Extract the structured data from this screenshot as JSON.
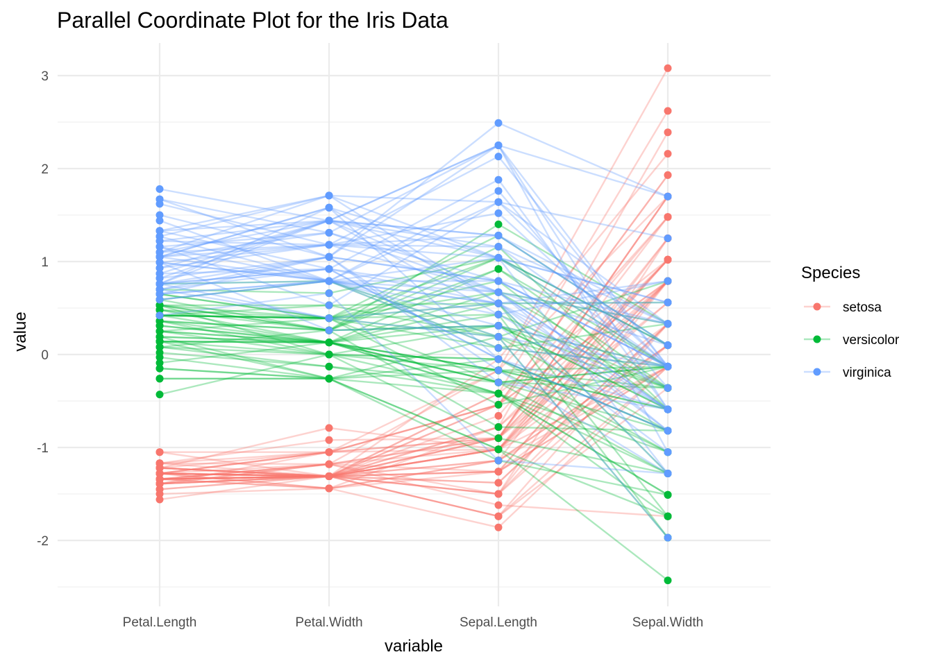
{
  "chart_data": {
    "type": "line",
    "title": "Parallel Coordinate Plot for the Iris Data",
    "xlabel": "variable",
    "ylabel": "value",
    "categories": [
      "Petal.Length",
      "Petal.Width",
      "Sepal.Length",
      "Sepal.Width"
    ],
    "ylim": [
      -2.5,
      3.2
    ],
    "yticks": [
      3,
      2,
      1,
      0,
      -1,
      -2
    ],
    "ytick_labels": [
      "3",
      "2",
      "1",
      "0",
      "-1",
      "-2"
    ],
    "grid": true,
    "legend": {
      "title": "Species",
      "position": "right",
      "entries": [
        "setosa",
        "versicolor",
        "virginica"
      ]
    },
    "series": [
      {
        "name": "setosa",
        "color": "#F8766D",
        "lines": [
          [
            -1.34,
            -1.31,
            -0.9,
            1.02
          ],
          [
            -1.34,
            -1.31,
            -1.14,
            -0.13
          ],
          [
            -1.39,
            -1.31,
            -1.38,
            0.33
          ],
          [
            -1.28,
            -1.31,
            -1.5,
            0.1
          ],
          [
            -1.34,
            -1.31,
            -1.02,
            1.25
          ],
          [
            -1.17,
            -1.05,
            -0.54,
            1.93
          ],
          [
            -1.34,
            -1.18,
            -1.5,
            0.79
          ],
          [
            -1.28,
            -1.31,
            -1.02,
            0.79
          ],
          [
            -1.34,
            -1.31,
            -1.74,
            -0.36
          ],
          [
            -1.28,
            -1.44,
            -1.14,
            0.1
          ],
          [
            -1.28,
            -1.31,
            -0.54,
            1.48
          ],
          [
            -1.22,
            -1.31,
            -1.26,
            0.79
          ],
          [
            -1.34,
            -1.44,
            -1.26,
            -0.13
          ],
          [
            -1.5,
            -1.44,
            -1.86,
            -0.13
          ],
          [
            -1.45,
            -1.31,
            -0.05,
            2.16
          ],
          [
            -1.28,
            -1.05,
            -0.17,
            3.08
          ],
          [
            -1.39,
            -1.05,
            -0.54,
            1.93
          ],
          [
            -1.34,
            -1.18,
            -0.9,
            1.02
          ],
          [
            -1.17,
            -1.18,
            -0.17,
            1.7
          ],
          [
            -1.28,
            -1.18,
            -0.9,
            1.7
          ],
          [
            -1.17,
            -1.31,
            -0.54,
            0.79
          ],
          [
            -1.28,
            -1.05,
            -0.9,
            1.48
          ],
          [
            -1.56,
            -1.31,
            -1.5,
            1.25
          ],
          [
            -1.17,
            -0.92,
            -0.9,
            0.56
          ],
          [
            -1.05,
            -1.31,
            -1.26,
            0.79
          ],
          [
            -1.22,
            -1.31,
            -1.02,
            -0.13
          ],
          [
            -1.22,
            -1.05,
            -1.02,
            0.79
          ],
          [
            -1.28,
            -1.31,
            -0.78,
            1.02
          ],
          [
            -1.34,
            -1.31,
            -0.78,
            0.79
          ],
          [
            -1.22,
            -1.31,
            -1.38,
            0.33
          ],
          [
            -1.22,
            -1.31,
            -1.26,
            0.1
          ],
          [
            -1.28,
            -1.05,
            -0.54,
            0.79
          ],
          [
            -1.28,
            -1.44,
            -0.78,
            2.39
          ],
          [
            -1.34,
            -1.31,
            -0.42,
            2.62
          ],
          [
            -1.28,
            -1.31,
            -1.14,
            0.1
          ],
          [
            -1.45,
            -1.31,
            -1.02,
            0.33
          ],
          [
            -1.39,
            -1.31,
            -0.42,
            1.02
          ],
          [
            -1.34,
            -1.44,
            -1.14,
            1.25
          ],
          [
            -1.39,
            -1.31,
            -1.74,
            -0.13
          ],
          [
            -1.28,
            -1.31,
            -0.9,
            0.79
          ],
          [
            -1.39,
            -1.18,
            -1.02,
            1.02
          ],
          [
            -1.39,
            -1.18,
            -1.62,
            -1.74
          ],
          [
            -1.39,
            -1.31,
            -1.74,
            0.33
          ],
          [
            -1.22,
            -0.79,
            -1.02,
            1.02
          ],
          [
            -1.05,
            -1.05,
            -0.9,
            1.7
          ],
          [
            -1.34,
            -1.18,
            -1.26,
            -0.13
          ],
          [
            -1.22,
            -1.31,
            -0.9,
            1.7
          ],
          [
            -1.34,
            -1.31,
            -1.5,
            0.33
          ],
          [
            -1.28,
            -1.31,
            -0.66,
            1.48
          ],
          [
            -1.34,
            -1.31,
            -1.02,
            0.56
          ]
        ]
      },
      {
        "name": "versicolor",
        "color": "#00BA38",
        "lines": [
          [
            0.53,
            0.26,
            1.4,
            0.33
          ],
          [
            0.42,
            0.39,
            0.67,
            0.33
          ],
          [
            0.65,
            0.39,
            1.28,
            0.1
          ],
          [
            0.14,
            0.13,
            -0.42,
            -1.74
          ],
          [
            0.48,
            0.39,
            0.79,
            -0.59
          ],
          [
            0.42,
            0.13,
            -0.17,
            -0.59
          ],
          [
            0.53,
            0.53,
            0.55,
            0.56
          ],
          [
            -0.26,
            -0.26,
            -1.14,
            -1.51
          ],
          [
            0.48,
            0.13,
            0.92,
            -0.36
          ],
          [
            0.08,
            0.26,
            -0.78,
            -0.82
          ],
          [
            -0.15,
            -0.26,
            -1.02,
            -2.43
          ],
          [
            0.25,
            0.39,
            0.07,
            -0.13
          ],
          [
            0.14,
            -0.26,
            0.19,
            -1.97
          ],
          [
            0.53,
            0.26,
            0.31,
            -0.36
          ],
          [
            -0.09,
            0.13,
            -0.3,
            -0.36
          ],
          [
            0.36,
            0.26,
            1.04,
            0.1
          ],
          [
            0.42,
            0.39,
            -0.3,
            -0.13
          ],
          [
            0.19,
            -0.26,
            -0.05,
            -0.82
          ],
          [
            0.42,
            0.39,
            0.43,
            -1.97
          ],
          [
            0.08,
            -0.13,
            -0.3,
            -1.28
          ],
          [
            0.59,
            0.79,
            0.07,
            0.33
          ],
          [
            0.14,
            0.13,
            0.31,
            -0.59
          ],
          [
            0.65,
            0.39,
            0.55,
            -1.28
          ],
          [
            0.53,
            0.0,
            0.31,
            -0.59
          ],
          [
            0.31,
            0.13,
            0.67,
            -0.36
          ],
          [
            0.36,
            0.26,
            0.92,
            -0.13
          ],
          [
            0.59,
            0.26,
            1.16,
            -0.59
          ],
          [
            0.7,
            0.66,
            1.04,
            -0.13
          ],
          [
            0.42,
            0.39,
            0.19,
            -0.36
          ],
          [
            -0.15,
            -0.26,
            -0.17,
            -1.05
          ],
          [
            0.02,
            -0.13,
            -0.42,
            -1.51
          ],
          [
            -0.03,
            -0.26,
            -0.42,
            -1.51
          ],
          [
            0.08,
            0.0,
            -0.05,
            -0.82
          ],
          [
            0.76,
            0.79,
            0.19,
            -0.82
          ],
          [
            0.42,
            0.39,
            -0.54,
            -0.13
          ],
          [
            0.42,
            0.53,
            0.19,
            0.79
          ],
          [
            0.53,
            0.39,
            1.04,
            0.1
          ],
          [
            0.36,
            0.13,
            0.55,
            -1.74
          ],
          [
            0.19,
            0.13,
            -0.3,
            -0.13
          ],
          [
            0.14,
            0.13,
            -0.42,
            -1.28
          ],
          [
            0.36,
            0.0,
            -0.42,
            -1.05
          ],
          [
            0.48,
            0.26,
            0.31,
            -0.13
          ],
          [
            0.14,
            0.0,
            -0.05,
            -1.05
          ],
          [
            -0.26,
            -0.26,
            -1.02,
            -1.74
          ],
          [
            0.25,
            0.13,
            -0.3,
            -0.82
          ],
          [
            0.25,
            0.0,
            -0.17,
            -0.13
          ],
          [
            0.25,
            0.13,
            -0.17,
            -0.36
          ],
          [
            0.31,
            0.13,
            0.43,
            -0.36
          ],
          [
            -0.43,
            0.0,
            -0.9,
            -1.28
          ],
          [
            0.19,
            0.13,
            -0.17,
            -0.59
          ]
        ]
      },
      {
        "name": "virginica",
        "color": "#619CFF",
        "lines": [
          [
            1.27,
            1.71,
            0.55,
            0.56
          ],
          [
            0.76,
            0.92,
            -0.05,
            -0.82
          ],
          [
            1.22,
            1.18,
            1.52,
            -0.13
          ],
          [
            1.05,
            0.79,
            0.55,
            -0.36
          ],
          [
            1.16,
            1.31,
            0.79,
            -0.13
          ],
          [
            1.62,
            1.18,
            2.13,
            -0.13
          ],
          [
            0.42,
            0.66,
            -1.14,
            -1.28
          ],
          [
            1.44,
            0.79,
            1.76,
            -0.36
          ],
          [
            1.16,
            0.79,
            1.04,
            -1.28
          ],
          [
            1.33,
            1.71,
            1.64,
            1.25
          ],
          [
            0.76,
            1.05,
            0.79,
            0.33
          ],
          [
            0.87,
            0.92,
            0.67,
            -0.82
          ],
          [
            0.99,
            1.18,
            1.16,
            -0.13
          ],
          [
            0.7,
            1.05,
            -0.17,
            -1.28
          ],
          [
            0.76,
            1.58,
            -0.05,
            -0.59
          ],
          [
            0.87,
            1.44,
            0.67,
            0.33
          ],
          [
            0.99,
            0.79,
            0.79,
            -0.13
          ],
          [
            1.67,
            1.31,
            2.25,
            1.7
          ],
          [
            1.78,
            1.44,
            2.25,
            -1.05
          ],
          [
            0.7,
            0.39,
            0.19,
            -1.97
          ],
          [
            1.1,
            1.44,
            1.28,
            0.33
          ],
          [
            0.65,
            1.05,
            -0.3,
            -0.59
          ],
          [
            1.67,
            1.05,
            2.25,
            -0.59
          ],
          [
            0.65,
            0.79,
            0.55,
            -0.82
          ],
          [
            1.1,
            1.18,
            1.04,
            0.56
          ],
          [
            1.27,
            0.79,
            1.64,
            0.33
          ],
          [
            0.59,
            0.79,
            0.43,
            -0.59
          ],
          [
            0.65,
            0.79,
            0.31,
            -0.13
          ],
          [
            1.05,
            1.18,
            0.67,
            -0.59
          ],
          [
            1.16,
            0.53,
            1.64,
            -0.13
          ],
          [
            1.33,
            0.92,
            1.88,
            -0.59
          ],
          [
            1.5,
            1.05,
            2.49,
            1.7
          ],
          [
            1.05,
            1.31,
            0.67,
            -0.59
          ],
          [
            0.76,
            0.39,
            0.55,
            -0.59
          ],
          [
            0.99,
            0.26,
            0.31,
            -1.05
          ],
          [
            1.33,
            1.44,
            2.25,
            -0.13
          ],
          [
            1.05,
            1.58,
            0.55,
            0.79
          ],
          [
            0.99,
            0.79,
            0.67,
            0.1
          ],
          [
            0.59,
            0.79,
            0.19,
            -0.13
          ],
          [
            0.93,
            1.18,
            1.28,
            0.1
          ],
          [
            1.05,
            1.58,
            1.04,
            0.1
          ],
          [
            0.76,
            1.44,
            1.28,
            0.1
          ],
          [
            0.76,
            0.92,
            -0.05,
            -0.82
          ],
          [
            1.22,
            1.44,
            1.16,
            0.33
          ],
          [
            1.1,
            1.71,
            1.04,
            0.56
          ],
          [
            0.82,
            1.44,
            1.04,
            -0.13
          ],
          [
            0.7,
            0.92,
            0.55,
            -1.28
          ],
          [
            0.82,
            1.05,
            0.79,
            -0.13
          ],
          [
            0.93,
            1.44,
            0.43,
            0.79
          ],
          [
            0.76,
            0.79,
            0.07,
            -0.13
          ]
        ]
      }
    ]
  }
}
